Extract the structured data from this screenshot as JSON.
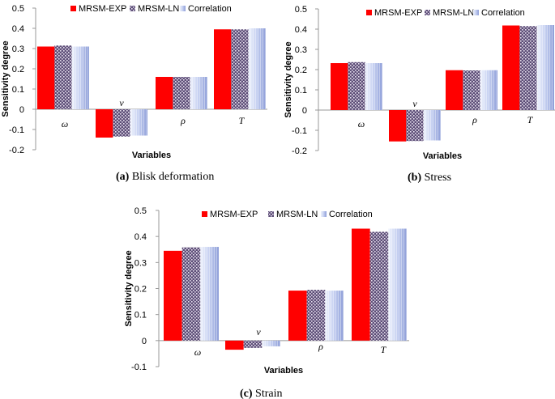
{
  "colors": {
    "exp": "#ff0000",
    "ln_base": "#6b5a82",
    "corr_light": "#e6ecfa",
    "corr_dark": "#9aa8dc",
    "axis": "#999999"
  },
  "legend": {
    "exp": "MRSM-EXP",
    "ln": "MRSM-LN",
    "corr": "Correlation"
  },
  "chart_data": [
    {
      "type": "bar",
      "id": "a",
      "caption_prefix": "(a)",
      "caption_text": "Blisk deformation",
      "ylabel": "Sensitivity degree",
      "xlabel": "Variables",
      "ylim": [
        -0.2,
        0.5
      ],
      "yticks": [
        "0.5",
        "0.4",
        "0.3",
        "0.2",
        "0.1",
        "0",
        "-0.1",
        "-0.2"
      ],
      "ytick_values": [
        0.5,
        0.4,
        0.3,
        0.2,
        0.1,
        0,
        -0.1,
        -0.2
      ],
      "categories": [
        "ω",
        "ν",
        "ρ",
        "T"
      ],
      "series": [
        {
          "name": "MRSM-EXP",
          "values": [
            0.31,
            -0.14,
            0.16,
            0.395
          ]
        },
        {
          "name": "MRSM-LN",
          "values": [
            0.315,
            -0.135,
            0.16,
            0.395
          ]
        },
        {
          "name": "Correlation",
          "values": [
            0.31,
            -0.13,
            0.16,
            0.4
          ]
        }
      ]
    },
    {
      "type": "bar",
      "id": "b",
      "caption_prefix": "(b)",
      "caption_text": "Stress",
      "ylabel": "Sensitivity degree",
      "xlabel": "Variables",
      "ylim": [
        -0.2,
        0.5
      ],
      "yticks": [
        "0.5",
        "0.4",
        "0.3",
        "0.2",
        "0.1",
        "0",
        "-0.1",
        "-0.2"
      ],
      "ytick_values": [
        0.5,
        0.4,
        0.3,
        0.2,
        0.1,
        0,
        -0.1,
        -0.2
      ],
      "categories": [
        "ω",
        "ν",
        "ρ",
        "T"
      ],
      "series": [
        {
          "name": "MRSM-EXP",
          "values": [
            0.232,
            -0.155,
            0.197,
            0.418
          ]
        },
        {
          "name": "MRSM-LN",
          "values": [
            0.237,
            -0.153,
            0.196,
            0.415
          ]
        },
        {
          "name": "Correlation",
          "values": [
            0.232,
            -0.15,
            0.197,
            0.42
          ]
        }
      ]
    },
    {
      "type": "bar",
      "id": "c",
      "caption_prefix": "(c)",
      "caption_text": "Strain",
      "ylabel": "Sensitivity degree",
      "xlabel": "Variables",
      "ylim": [
        -0.1,
        0.5
      ],
      "yticks": [
        "0.5",
        "0.4",
        "0.3",
        "0.2",
        "0.1",
        "0",
        "-0.1"
      ],
      "ytick_values": [
        0.5,
        0.4,
        0.3,
        0.2,
        0.1,
        0,
        -0.1
      ],
      "categories": [
        "ω",
        "ν",
        "ρ",
        "T"
      ],
      "series": [
        {
          "name": "MRSM-EXP",
          "values": [
            0.345,
            -0.035,
            0.192,
            0.43
          ]
        },
        {
          "name": "MRSM-LN",
          "values": [
            0.358,
            -0.028,
            0.195,
            0.418
          ]
        },
        {
          "name": "Correlation",
          "values": [
            0.36,
            -0.022,
            0.192,
            0.43
          ]
        }
      ]
    }
  ]
}
